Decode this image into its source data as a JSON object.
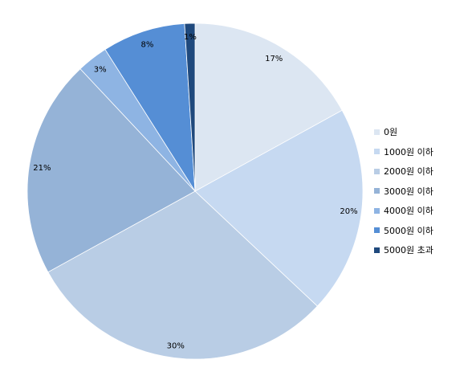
{
  "chart_data": {
    "type": "pie",
    "categories": [
      "0원",
      "1000원 이하",
      "2000원 이하",
      "3000원 이하",
      "4000원 이하",
      "5000원 이하",
      "5000원 초과"
    ],
    "values": [
      17,
      20,
      30,
      21,
      3,
      8,
      1
    ],
    "labels": [
      "17%",
      "20%",
      "30%",
      "21%",
      "3%",
      "8%",
      "1%"
    ],
    "colors": [
      "#dce6f2",
      "#c6d9f1",
      "#b9cde5",
      "#95b3d7",
      "#8eb4e3",
      "#558ed5",
      "#1f497d"
    ],
    "legend_position": "right",
    "title": ""
  }
}
